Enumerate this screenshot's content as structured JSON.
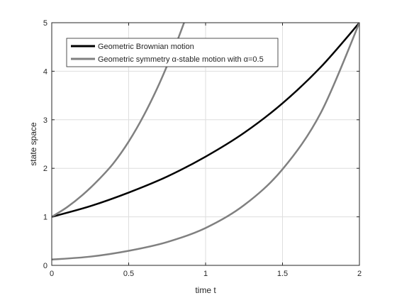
{
  "chart_data": {
    "type": "line",
    "title": "",
    "xlabel": "time t",
    "ylabel": "state space",
    "xlim": [
      0,
      2
    ],
    "ylim": [
      0,
      5
    ],
    "xticks": [
      "0",
      "0.5",
      "1",
      "1.5",
      "2"
    ],
    "yticks": [
      "0",
      "1",
      "2",
      "3",
      "4",
      "5"
    ],
    "grid": true,
    "legend_placement": "top-left",
    "series": [
      {
        "name": "Geometric Brownian motion",
        "color": "#000000",
        "x": [
          0,
          0.25,
          0.5,
          0.75,
          1.0,
          1.25,
          1.5,
          1.75,
          2.0
        ],
        "y": [
          1.0,
          1.22,
          1.5,
          1.83,
          2.24,
          2.73,
          3.34,
          4.09,
          5.0
        ]
      },
      {
        "name": "Geometric symmetry α-stable motion with α=0.5",
        "color": "#808080",
        "x": [
          0,
          0.1,
          0.2,
          0.3,
          0.4,
          0.5,
          0.6,
          0.7,
          0.8,
          0.86
        ],
        "y": [
          1.0,
          1.2,
          1.45,
          1.75,
          2.1,
          2.55,
          3.1,
          3.75,
          4.5,
          5.0
        ]
      },
      {
        "name": "",
        "color": "#808080",
        "x": [
          0,
          0.25,
          0.5,
          0.75,
          1.0,
          1.25,
          1.5,
          1.75,
          2.0
        ],
        "y": [
          0.12,
          0.18,
          0.3,
          0.48,
          0.77,
          1.24,
          1.98,
          3.15,
          5.0
        ]
      }
    ]
  }
}
